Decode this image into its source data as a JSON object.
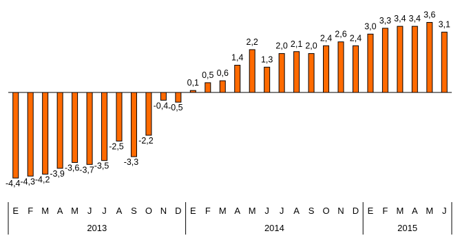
{
  "chart_data": {
    "type": "bar",
    "title": "",
    "xlabel": "",
    "ylabel": "",
    "bar_color": "#ff6a00",
    "bar_outline": "#000000",
    "ylim": [
      -4.8,
      3.8
    ],
    "grid": false,
    "years": [
      {
        "label": "2013",
        "months": 12
      },
      {
        "label": "2014",
        "months": 12
      },
      {
        "label": "2015",
        "months": 6
      }
    ],
    "categories": [
      "E",
      "F",
      "M",
      "A",
      "M",
      "J",
      "J",
      "A",
      "S",
      "O",
      "N",
      "D",
      "E",
      "F",
      "M",
      "A",
      "M",
      "J",
      "J",
      "A",
      "S",
      "O",
      "N",
      "D",
      "E",
      "F",
      "M",
      "A",
      "M",
      "J"
    ],
    "values": [
      -4.4,
      -4.3,
      -4.2,
      -3.9,
      -3.6,
      -3.7,
      -3.5,
      -2.5,
      -3.3,
      -2.2,
      -0.4,
      -0.5,
      0.1,
      0.5,
      0.6,
      1.4,
      2.2,
      1.3,
      2.0,
      2.1,
      2.0,
      2.4,
      2.6,
      2.4,
      3.0,
      3.3,
      3.4,
      3.4,
      3.6,
      3.1
    ],
    "data_labels": [
      "-4,4",
      "-4,3",
      "-4,2",
      "-3,9",
      "-3,6",
      "-3,7",
      "-3,5",
      "-2,5",
      "-3,3",
      "-2,2",
      "-0,4",
      "-0,5",
      "0,1",
      "0,5",
      "0,6",
      "1,4",
      "2,2",
      "1,3",
      "2,0",
      "2,1",
      "2,0",
      "2,4",
      "2,6",
      "2,4",
      "3,0",
      "3,3",
      "3,4",
      "3,4",
      "3,6",
      "3,1"
    ]
  }
}
